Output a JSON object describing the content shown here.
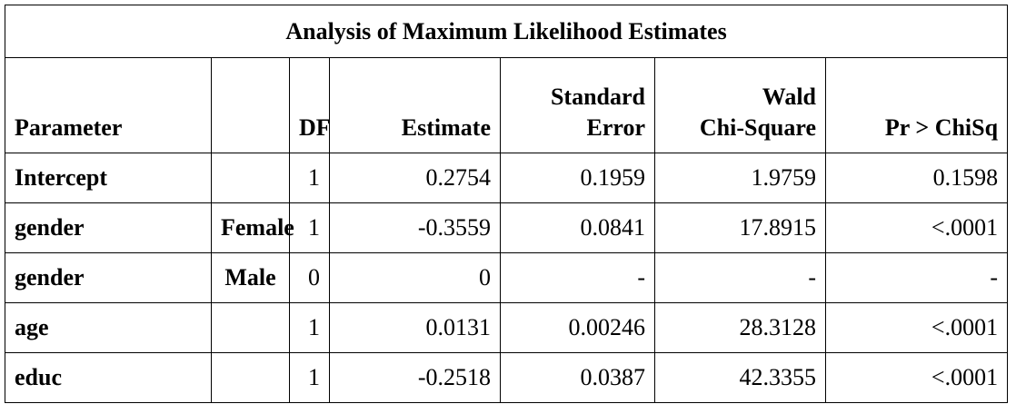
{
  "table": {
    "title": "Analysis of Maximum Likelihood Estimates",
    "headers": [
      [
        "Parameter"
      ],
      [
        "DF"
      ],
      [
        "Estimate"
      ],
      [
        "Standard",
        "Error"
      ],
      [
        "Wald",
        "Chi-Square"
      ],
      [
        "Pr > ChiSq"
      ]
    ],
    "rows": [
      {
        "parameter": "Intercept",
        "df": "1",
        "estimate": "0.2754",
        "se": "0.1959",
        "chisq": "1.9759",
        "p": "0.1598"
      },
      {
        "parameter": "gender",
        "level": "Female",
        "df": "1",
        "estimate": "-0.3559",
        "se": "0.0841",
        "chisq": "17.8915",
        "p": "<.0001"
      },
      {
        "parameter": "gender",
        "level": "Male",
        "df": "0",
        "estimate": "0",
        "se": "-",
        "chisq": "-",
        "p": "-"
      },
      {
        "parameter": "age",
        "df": "1",
        "estimate": "0.0131",
        "se": "0.00246",
        "chisq": "28.3128",
        "p": "<.0001"
      },
      {
        "parameter": "educ",
        "df": "1",
        "estimate": "-0.2518",
        "se": "0.0387",
        "chisq": "42.3355",
        "p": "<.0001"
      }
    ]
  }
}
